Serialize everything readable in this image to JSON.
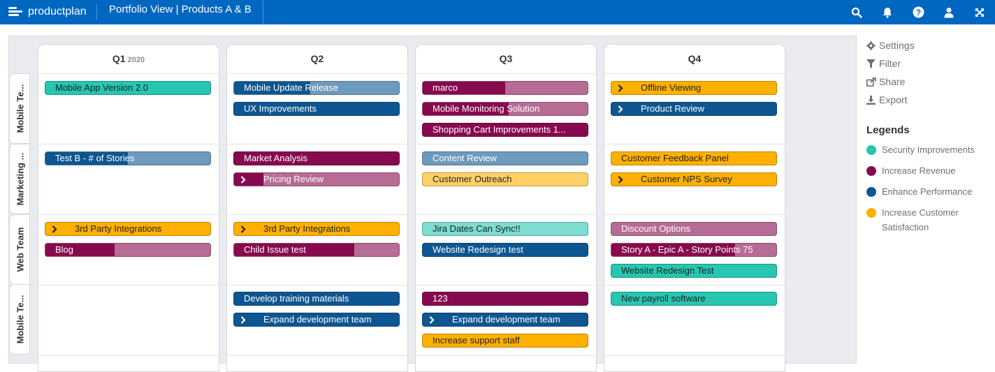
{
  "header": {
    "logo_text": "productplan",
    "title": "Portfolio View | Products A & B",
    "icons": [
      "search-icon",
      "bell-icon",
      "help-icon",
      "user-icon",
      "expand-icon"
    ]
  },
  "quarters": [
    {
      "label": "Q1",
      "year": "2020"
    },
    {
      "label": "Q2",
      "year": ""
    },
    {
      "label": "Q3",
      "year": ""
    },
    {
      "label": "Q4",
      "year": ""
    }
  ],
  "lanes": [
    {
      "label": "Mobile Te..."
    },
    {
      "label": "Marketing ..."
    },
    {
      "label": "Web Team"
    },
    {
      "label": "Mobile Te..."
    }
  ],
  "colors": {
    "security": "#26c6b0",
    "revenue": "#870a4e",
    "performance": "#0e5691",
    "satisfaction": "#ffb000"
  },
  "bars": [
    {
      "label": "Mobile App Version 2.0",
      "lane": 0,
      "quarter": 0,
      "slot": 0,
      "legend": "security",
      "progress": 1,
      "chevron": false
    },
    {
      "label": "Mobile Update Release",
      "lane": 0,
      "quarter": 1,
      "slot": 0,
      "legend": "performance",
      "progress": 0.46,
      "chevron": false
    },
    {
      "label": "UX Improvements",
      "lane": 0,
      "quarter": 1,
      "slot": 1,
      "legend": "performance",
      "progress": 1,
      "chevron": false
    },
    {
      "label": "marco",
      "lane": 0,
      "quarter": 2,
      "slot": 0,
      "legend": "revenue",
      "progress": 0.5,
      "chevron": false
    },
    {
      "label": "Mobile Monitoring Solution",
      "lane": 0,
      "quarter": 2,
      "slot": 1,
      "legend": "revenue",
      "progress": 0.52,
      "chevron": false
    },
    {
      "label": "Shopping Cart Improvements 1...",
      "lane": 0,
      "quarter": 2,
      "slot": 2,
      "legend": "revenue",
      "progress": 1,
      "chevron": false
    },
    {
      "label": "Offline Viewing",
      "lane": 0,
      "quarter": 3,
      "slot": 0,
      "legend": "satisfaction",
      "progress": 1,
      "chevron": true
    },
    {
      "label": "Product Review",
      "lane": 0,
      "quarter": 3,
      "slot": 1,
      "legend": "performance",
      "progress": 1,
      "chevron": true
    },
    {
      "label": "Test B - # of Stories",
      "lane": 1,
      "quarter": 0,
      "slot": 0,
      "legend": "performance",
      "progress": 0.5,
      "chevron": false
    },
    {
      "label": "Market Analysis",
      "lane": 1,
      "quarter": 1,
      "slot": 0,
      "legend": "revenue",
      "progress": 1,
      "chevron": false
    },
    {
      "label": "Pricing Review",
      "lane": 1,
      "quarter": 1,
      "slot": 1,
      "legend": "revenue",
      "progress": 0.18,
      "chevron": true
    },
    {
      "label": "Content Review",
      "lane": 1,
      "quarter": 2,
      "slot": 0,
      "legend": "performance",
      "progress": 0,
      "chevron": false
    },
    {
      "label": "Customer Outreach",
      "lane": 1,
      "quarter": 2,
      "slot": 1,
      "legend": "satisfaction",
      "progress": 0,
      "chevron": false
    },
    {
      "label": "Customer Feedback Panel",
      "lane": 1,
      "quarter": 3,
      "slot": 0,
      "legend": "satisfaction",
      "progress": 1,
      "chevron": false
    },
    {
      "label": "Customer NPS Survey",
      "lane": 1,
      "quarter": 3,
      "slot": 1,
      "legend": "satisfaction",
      "progress": 1,
      "chevron": true
    },
    {
      "label": "3rd Party Integrations",
      "lane": 2,
      "quarter": 0,
      "slot": 0,
      "legend": "satisfaction",
      "progress": 1,
      "chevron": true
    },
    {
      "label": "Blog",
      "lane": 2,
      "quarter": 0,
      "slot": 1,
      "legend": "revenue",
      "progress": 0.42,
      "chevron": false
    },
    {
      "label": "3rd Party Integrations",
      "lane": 2,
      "quarter": 1,
      "slot": 0,
      "legend": "satisfaction",
      "progress": 1,
      "chevron": true
    },
    {
      "label": "Child Issue test",
      "lane": 2,
      "quarter": 1,
      "slot": 1,
      "legend": "revenue",
      "progress": 0.73,
      "chevron": false
    },
    {
      "label": "Jira Dates Can Sync!!",
      "lane": 2,
      "quarter": 2,
      "slot": 0,
      "legend": "security",
      "progress": 0,
      "chevron": false
    },
    {
      "label": "Website Redesign test",
      "lane": 2,
      "quarter": 2,
      "slot": 1,
      "legend": "performance",
      "progress": 1,
      "chevron": false
    },
    {
      "label": "Discount Options",
      "lane": 2,
      "quarter": 3,
      "slot": 0,
      "legend": "revenue",
      "progress": 0,
      "chevron": false
    },
    {
      "label": "Story A - Epic A - Story Points 75",
      "lane": 2,
      "quarter": 3,
      "slot": 1,
      "legend": "revenue",
      "progress": 0.75,
      "chevron": false
    },
    {
      "label": "Website Redesign Test",
      "lane": 2,
      "quarter": 3,
      "slot": 2,
      "legend": "security",
      "progress": 1,
      "chevron": false
    },
    {
      "label": "Develop training materials",
      "lane": 3,
      "quarter": 1,
      "slot": 0,
      "legend": "performance",
      "progress": 1,
      "chevron": false
    },
    {
      "label": "Expand development team",
      "lane": 3,
      "quarter": 1,
      "slot": 1,
      "legend": "performance",
      "progress": 1,
      "chevron": true
    },
    {
      "label": "123",
      "lane": 3,
      "quarter": 2,
      "slot": 0,
      "legend": "revenue",
      "progress": 1,
      "chevron": false
    },
    {
      "label": "Expand development team",
      "lane": 3,
      "quarter": 2,
      "slot": 1,
      "legend": "performance",
      "progress": 1,
      "chevron": true
    },
    {
      "label": "Increase support staff",
      "lane": 3,
      "quarter": 2,
      "slot": 2,
      "legend": "satisfaction",
      "progress": 1,
      "chevron": false
    },
    {
      "label": "New payroll software",
      "lane": 3,
      "quarter": 3,
      "slot": 0,
      "legend": "security",
      "progress": 1,
      "chevron": false
    }
  ],
  "sidebar": {
    "settings": "Settings",
    "filter": "Filter",
    "share": "Share",
    "export": "Export",
    "legends_title": "Legends",
    "legends": [
      {
        "label": "Security Improvements",
        "key": "security"
      },
      {
        "label": "Increase Revenue",
        "key": "revenue"
      },
      {
        "label": "Enhance Performance",
        "key": "performance"
      },
      {
        "label": "Increase Customer Satisfaction",
        "key": "satisfaction"
      }
    ]
  }
}
